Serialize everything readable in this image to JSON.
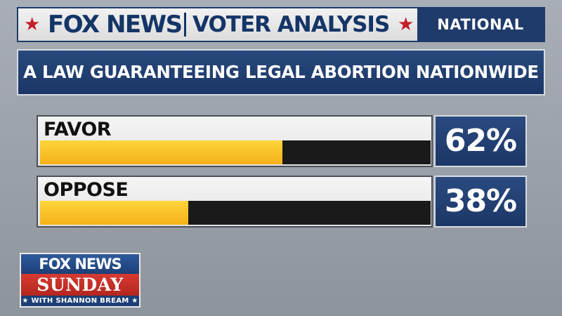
{
  "header": {
    "brand": "FOX NEWS",
    "subtitle": "VOTER ANALYSIS",
    "badge": "NATIONAL",
    "star_color": "#c41f2a"
  },
  "question": "A LAW GUARANTEEING LEGAL ABORTION NATIONWIDE",
  "chart_data": {
    "type": "bar",
    "orientation": "horizontal",
    "categories": [
      "FAVOR",
      "OPPOSE"
    ],
    "values": [
      62,
      38
    ],
    "value_labels": [
      "62%",
      "38%"
    ],
    "xlim": [
      0,
      100
    ],
    "bar_color": "#f4b21a",
    "track_color": "#1a1a1a"
  },
  "logo": {
    "line1": "FOX NEWS",
    "line2": "SUNDAY",
    "line3": "★ WITH SHANNON BREAM ★"
  }
}
